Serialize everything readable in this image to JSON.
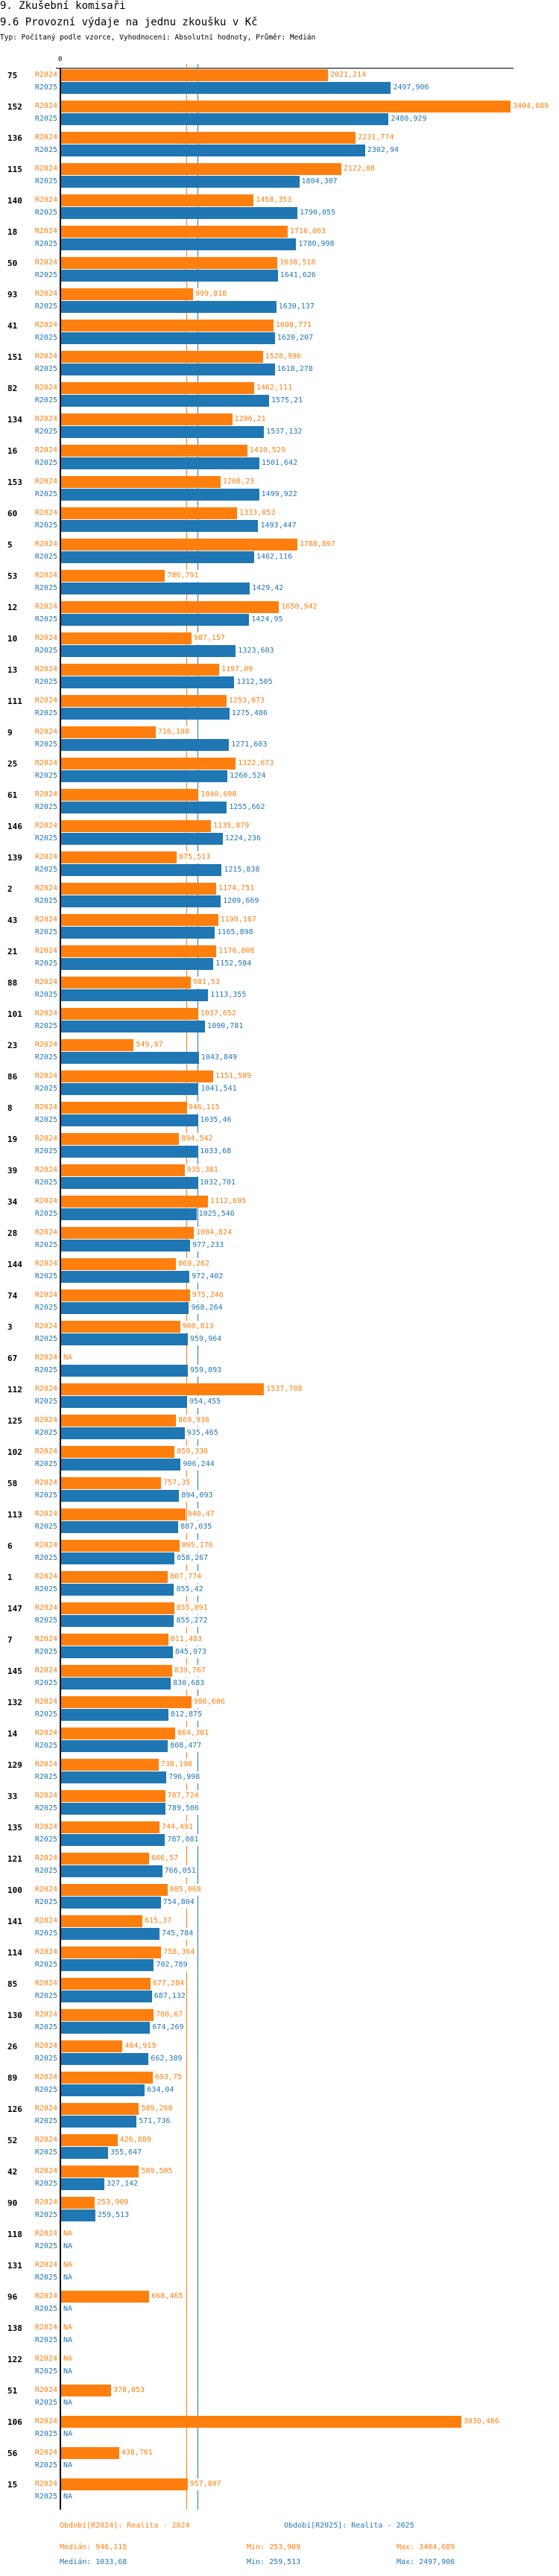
{
  "header": {
    "title": "9. Zkušební komisaři",
    "subtitle": "9.6 Provozní výdaje na jednu zkoušku v Kč",
    "type_line": "Typ: Počítaný podle vzorce, Vyhodnocení: Absolutní hodnoty, Průměr: Medián"
  },
  "chart_data": {
    "type": "bar",
    "orientation": "horizontal",
    "title": "9.6 Provozní výdaje na jednu zkoušku v Kč",
    "axis_zero_label": "0",
    "xlim": [
      0,
      3404.689
    ],
    "series_labels": [
      "R2024",
      "R2025"
    ],
    "colors": {
      "R2024": "#ff7f0e",
      "R2025": "#1f77b4"
    },
    "groups": [
      {
        "id": "75",
        "r2024": "2021,214",
        "r2025": "2497,906"
      },
      {
        "id": "152",
        "r2024": "3404,689",
        "r2025": "2480,929"
      },
      {
        "id": "136",
        "r2024": "2231,774",
        "r2025": "2302,94"
      },
      {
        "id": "115",
        "r2024": "2122,08",
        "r2025": "1804,307"
      },
      {
        "id": "140",
        "r2024": "1458,353",
        "r2025": "1790,055"
      },
      {
        "id": "18",
        "r2024": "1716,003",
        "r2025": "1780,998"
      },
      {
        "id": "50",
        "r2024": "1638,518",
        "r2025": "1641,626"
      },
      {
        "id": "93",
        "r2024": "999,818",
        "r2025": "1630,137"
      },
      {
        "id": "41",
        "r2024": "1608,771",
        "r2025": "1620,207"
      },
      {
        "id": "151",
        "r2024": "1528,996",
        "r2025": "1618,278"
      },
      {
        "id": "82",
        "r2024": "1462,111",
        "r2025": "1575,21"
      },
      {
        "id": "134",
        "r2024": "1296,21",
        "r2025": "1537,132"
      },
      {
        "id": "16",
        "r2024": "1410,529",
        "r2025": "1501,642"
      },
      {
        "id": "153",
        "r2024": "1208,23",
        "r2025": "1499,922"
      },
      {
        "id": "60",
        "r2024": "1333,053",
        "r2025": "1493,447"
      },
      {
        "id": "5",
        "r2024": "1788,897",
        "r2025": "1462,116"
      },
      {
        "id": "53",
        "r2024": "786,791",
        "r2025": "1429,42"
      },
      {
        "id": "12",
        "r2024": "1650,942",
        "r2025": "1424,95"
      },
      {
        "id": "10",
        "r2024": "987,157",
        "r2025": "1323,603"
      },
      {
        "id": "13",
        "r2024": "1197,09",
        "r2025": "1312,505"
      },
      {
        "id": "111",
        "r2024": "1253,073",
        "r2025": "1275,486"
      },
      {
        "id": "9",
        "r2024": "716,198",
        "r2025": "1271,603"
      },
      {
        "id": "25",
        "r2024": "1322,673",
        "r2025": "1260,524"
      },
      {
        "id": "61",
        "r2024": "1040,698",
        "r2025": "1255,662"
      },
      {
        "id": "146",
        "r2024": "1135,879",
        "r2025": "1224,236"
      },
      {
        "id": "139",
        "r2024": "875,513",
        "r2025": "1215,838"
      },
      {
        "id": "2",
        "r2024": "1174,751",
        "r2025": "1209,669"
      },
      {
        "id": "43",
        "r2024": "1190,167",
        "r2025": "1165,898"
      },
      {
        "id": "21",
        "r2024": "1176,808",
        "r2025": "1152,584"
      },
      {
        "id": "88",
        "r2024": "981,53",
        "r2025": "1113,355"
      },
      {
        "id": "101",
        "r2024": "1037,652",
        "r2025": "1090,781"
      },
      {
        "id": "23",
        "r2024": "549,97",
        "r2025": "1043,849"
      },
      {
        "id": "86",
        "r2024": "1151,589",
        "r2025": "1041,541"
      },
      {
        "id": "8",
        "r2024": "946,115",
        "r2025": "1035,46"
      },
      {
        "id": "19",
        "r2024": "894,542",
        "r2025": "1033,68"
      },
      {
        "id": "39",
        "r2024": "935,381",
        "r2025": "1032,701"
      },
      {
        "id": "34",
        "r2024": "1112,695",
        "r2025": "1025,546"
      },
      {
        "id": "28",
        "r2024": "1004,824",
        "r2025": "977,233"
      },
      {
        "id": "144",
        "r2024": "869,262",
        "r2025": "972,402"
      },
      {
        "id": "74",
        "r2024": "975,246",
        "r2025": "968,264"
      },
      {
        "id": "3",
        "r2024": "900,813",
        "r2025": "959,964"
      },
      {
        "id": "67",
        "r2024": "NA",
        "r2025": "959,893"
      },
      {
        "id": "112",
        "r2024": "1537,708",
        "r2025": "954,455"
      },
      {
        "id": "125",
        "r2024": "869,936",
        "r2025": "935,465"
      },
      {
        "id": "102",
        "r2024": "859,336",
        "r2025": "906,244"
      },
      {
        "id": "58",
        "r2024": "757,35",
        "r2025": "894,093"
      },
      {
        "id": "113",
        "r2024": "940,47",
        "r2025": "887,035"
      },
      {
        "id": "6",
        "r2024": "895,176",
        "r2025": "858,267"
      },
      {
        "id": "1",
        "r2024": "807,774",
        "r2025": "855,42"
      },
      {
        "id": "147",
        "r2024": "855,891",
        "r2025": "855,272"
      },
      {
        "id": "7",
        "r2024": "811,483",
        "r2025": "845,973"
      },
      {
        "id": "145",
        "r2024": "839,767",
        "r2025": "830,683"
      },
      {
        "id": "132",
        "r2024": "986,606",
        "r2025": "812,875"
      },
      {
        "id": "14",
        "r2024": "864,301",
        "r2025": "808,477"
      },
      {
        "id": "129",
        "r2024": "738,198",
        "r2025": "796,998"
      },
      {
        "id": "33",
        "r2024": "787,724",
        "r2025": "789,506"
      },
      {
        "id": "135",
        "r2024": "744,491",
        "r2025": "787,081"
      },
      {
        "id": "121",
        "r2024": "666,57",
        "r2025": "766,051"
      },
      {
        "id": "100",
        "r2024": "805,068",
        "r2025": "754,804"
      },
      {
        "id": "141",
        "r2024": "615,37",
        "r2025": "745,784"
      },
      {
        "id": "114",
        "r2024": "758,364",
        "r2025": "702,789"
      },
      {
        "id": "85",
        "r2024": "677,284",
        "r2025": "687,132"
      },
      {
        "id": "130",
        "r2024": "700,67",
        "r2025": "674,269"
      },
      {
        "id": "26",
        "r2024": "464,919",
        "r2025": "662,389"
      },
      {
        "id": "89",
        "r2024": "693,75",
        "r2025": "634,04"
      },
      {
        "id": "126",
        "r2024": "589,268",
        "r2025": "571,736"
      },
      {
        "id": "52",
        "r2024": "426,889",
        "r2025": "355,647"
      },
      {
        "id": "42",
        "r2024": "589,505",
        "r2025": "327,142"
      },
      {
        "id": "90",
        "r2024": "253,909",
        "r2025": "259,513"
      },
      {
        "id": "118",
        "r2024": "NA",
        "r2025": "NA"
      },
      {
        "id": "131",
        "r2024": "NA",
        "r2025": "NA"
      },
      {
        "id": "96",
        "r2024": "668,465",
        "r2025": "NA"
      },
      {
        "id": "138",
        "r2024": "NA",
        "r2025": "NA"
      },
      {
        "id": "122",
        "r2024": "NA",
        "r2025": "NA"
      },
      {
        "id": "51",
        "r2024": "378,053",
        "r2025": "NA"
      },
      {
        "id": "106",
        "r2024": "3030,486",
        "r2025": "NA"
      },
      {
        "id": "56",
        "r2024": "438,761",
        "r2025": "NA"
      },
      {
        "id": "15",
        "r2024": "957,807",
        "r2025": "NA"
      }
    ],
    "medians": {
      "R2024": 946.115,
      "R2025": 1033.68
    }
  },
  "legend": {
    "r2024_period": "Období[R2024]: Realita - 2024",
    "r2025_period": "Období[R2025]: Realita - 2025",
    "r2024_median": "Medián: 946,115",
    "r2024_min": "Min: 253,909",
    "r2024_max": "Max: 3404,689",
    "r2025_median": "Medián: 1033,68",
    "r2025_min": "Min: 259,513",
    "r2025_max": "Max: 2497,906"
  }
}
